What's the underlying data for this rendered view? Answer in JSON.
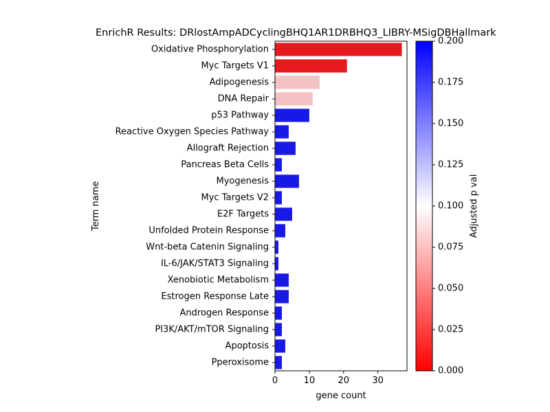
{
  "chart_data": {
    "type": "bar",
    "orientation": "horizontal",
    "title": "EnrichR Results: DRlostAmpADCyclingBHQ1AR1DRBHQ3_LIBRY-MSigDBHallmark",
    "xlabel": "gene count",
    "ylabel": "Term name",
    "xlim": [
      0,
      38.5
    ],
    "xticks": [
      0,
      10,
      20,
      30
    ],
    "categories": [
      "Oxidative Phosphorylation",
      "Myc Targets V1",
      "Adipogenesis",
      "DNA Repair",
      "p53 Pathway",
      "Reactive Oxygen Species Pathway",
      "Allograft Rejection",
      "Pancreas Beta Cells",
      "Myogenesis",
      "Myc Targets V2",
      "E2F Targets",
      "Unfolded Protein Response",
      "Wnt-beta Catenin Signaling",
      "IL-6/JAK/STAT3 Signaling",
      "Xenobiotic Metabolism",
      "Estrogen Response Late",
      "Androgen Response",
      "PI3K/AKT/mTOR  Signaling",
      "Apoptosis",
      "Pperoxisome"
    ],
    "values": [
      37,
      21,
      13,
      11,
      10,
      4,
      6,
      2,
      7,
      2,
      5,
      3,
      1,
      1,
      4,
      4,
      2,
      2,
      3,
      2
    ],
    "bar_colors": [
      "#e6191f",
      "#e6191f",
      "#f4c2c2",
      "#f4c2c2",
      "#1919e6",
      "#1919e6",
      "#1919e6",
      "#1919e6",
      "#1919e6",
      "#1919e6",
      "#1919e6",
      "#1919e6",
      "#1919e6",
      "#1919e6",
      "#1919e6",
      "#1919e6",
      "#1919e6",
      "#1919e6",
      "#1919e6",
      "#1919e6"
    ],
    "colorbar": {
      "label": "Adjusted p val",
      "range": [
        0,
        0.2
      ],
      "ticks": [
        "0.000",
        "0.025",
        "0.050",
        "0.075",
        "0.100",
        "0.125",
        "0.150",
        "0.175",
        "0.200"
      ],
      "colors": [
        "#ff0000",
        "#ffffff",
        "#0000ff"
      ]
    },
    "grid": false,
    "legend": "none"
  }
}
